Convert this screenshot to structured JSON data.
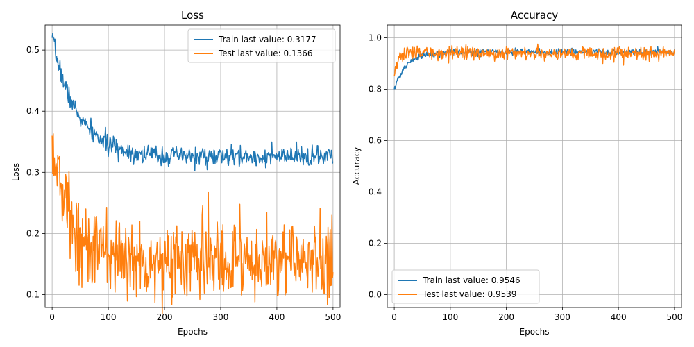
{
  "chart_data": [
    {
      "type": "line",
      "title": "Loss",
      "xlabel": "Epochs",
      "ylabel": "Loss",
      "xlim": [
        -12.5,
        512.5
      ],
      "ylim": [
        0.079,
        0.541
      ],
      "xticks": [
        0,
        100,
        200,
        300,
        400,
        500
      ],
      "yticks": [
        0.1,
        0.2,
        0.3,
        0.4,
        0.5
      ],
      "grid": true,
      "legend_position": "top-right",
      "series": [
        {
          "name": "Train last value: 0.3177",
          "color": "#1f77b4",
          "model": {
            "start": 0.52,
            "end": 0.325,
            "decay": 45,
            "noise": 0.008,
            "seed": 7
          },
          "last": 0.3177
        },
        {
          "name": "Test last value: 0.1366",
          "color": "#ff7f0e",
          "model": {
            "start": 0.36,
            "end": 0.155,
            "decay": 30,
            "noise": 0.034,
            "seed": 13
          },
          "last": 0.1366
        }
      ]
    },
    {
      "type": "line",
      "title": "Accuracy",
      "xlabel": "Epochs",
      "ylabel": "Accuracy",
      "xlim": [
        -12.5,
        512.5
      ],
      "ylim": [
        -0.05,
        1.05
      ],
      "xticks": [
        0,
        100,
        200,
        300,
        400,
        500
      ],
      "yticks": [
        0.0,
        0.2,
        0.4,
        0.6,
        0.8,
        1.0
      ],
      "grid": true,
      "legend_position": "bottom-left",
      "series": [
        {
          "name": "Train last value: 0.9546",
          "color": "#1f77b4",
          "model": {
            "start": 0.8,
            "end": 0.945,
            "decay": 22,
            "noise": 0.006,
            "seed": 21
          },
          "last": 0.9546
        },
        {
          "name": "Test last value: 0.9539",
          "color": "#ff7f0e",
          "model": {
            "start": 0.85,
            "end": 0.94,
            "decay": 6,
            "noise": 0.013,
            "seed": 33
          },
          "last": 0.9539
        }
      ]
    }
  ]
}
